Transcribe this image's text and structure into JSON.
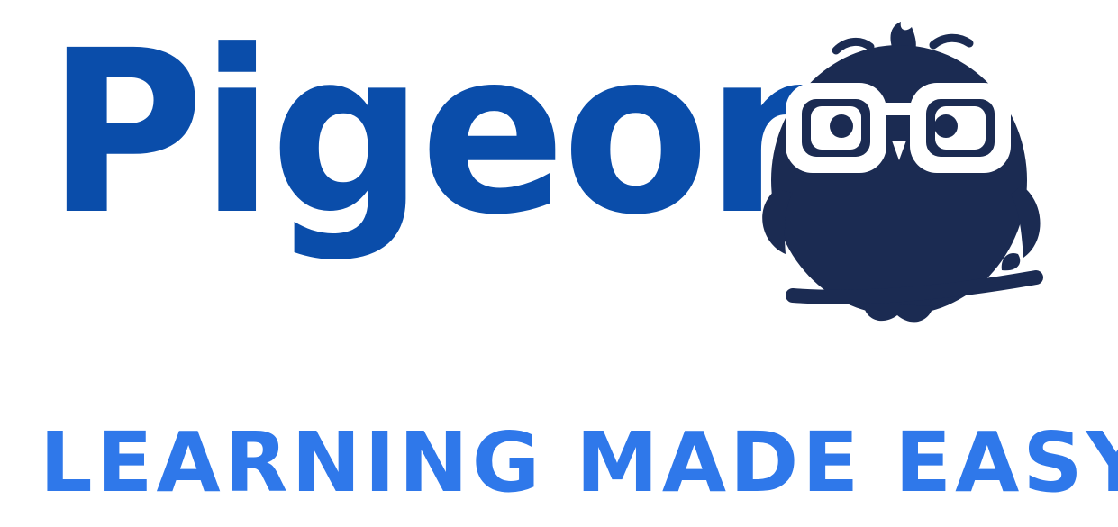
{
  "brand": {
    "name": "Pigeon",
    "tagline": "LEARNING MADE EASY"
  },
  "mascot": {
    "icon": "owl-mascot-icon"
  },
  "colors": {
    "background": "#ffffff",
    "brand_name": "#0a4daa",
    "tagline": "#2f78ea",
    "mascot_body": "#1b2b52",
    "mascot_glasses": "#ffffff"
  }
}
